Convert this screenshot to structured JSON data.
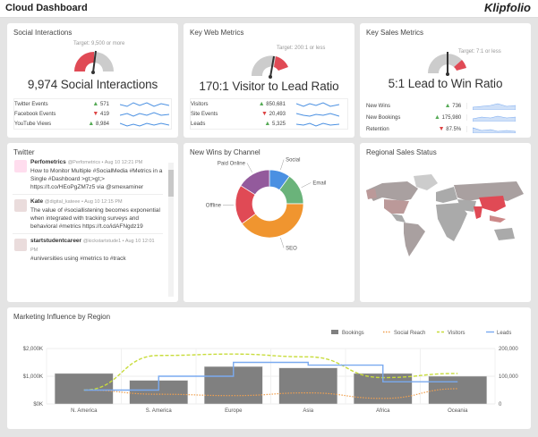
{
  "header": {
    "title": "Cloud Dashboard",
    "logo": "Klipfolio"
  },
  "social": {
    "title": "Social Interactions",
    "target": "Target: 9,500 or more",
    "headline": "9,974 Social Interactions",
    "gauge_value": 9974,
    "rows": [
      {
        "label": "Twitter Events",
        "trend": "up",
        "value": "571"
      },
      {
        "label": "Facebook Events",
        "trend": "down",
        "value": "419"
      },
      {
        "label": "YouTube Views",
        "trend": "up",
        "value": "8,984"
      }
    ]
  },
  "web": {
    "title": "Key Web Metrics",
    "target": "Target: 200:1 or less",
    "headline": "170:1 Visitor to Lead Ratio",
    "rows": [
      {
        "label": "Visitors",
        "trend": "up",
        "value": "850,681"
      },
      {
        "label": "Site Events",
        "trend": "down",
        "value": "20,493"
      },
      {
        "label": "Leads",
        "trend": "up",
        "value": "5,325"
      }
    ]
  },
  "sales": {
    "title": "Key Sales Metrics",
    "target": "Target: 7:1 or less",
    "headline": "5:1 Lead to Win Ratio",
    "rows": [
      {
        "label": "New Wins",
        "trend": "up",
        "value": "736"
      },
      {
        "label": "New Bookings",
        "trend": "up",
        "value": "175,980"
      },
      {
        "label": "Retention",
        "trend": "down",
        "value": "87.5%"
      }
    ]
  },
  "twitter": {
    "title": "Twitter",
    "tweets": [
      {
        "name": "Perfometrics",
        "meta": "@Perfometrics • Aug 10 12:21 PM",
        "text": "How to Monitor Multiple #SocialMedia #Metrics in a Single #Dashboard >gt;>gt;> https://t.co/HEoPgZM7z5 via @smexaminer"
      },
      {
        "name": "Kate",
        "meta": "@digital_kateee • Aug 10 12:15 PM",
        "text": "The value of #sociallistening becomes exponential when integrated with tracking surveys and behavioral #metrics https://t.co/idAFNgdz19"
      },
      {
        "name": "startstudentcareer",
        "meta": "@kickstartstude1 • Aug 10 12:01 PM",
        "text": "#universities using #metrics to #track"
      }
    ]
  },
  "wins": {
    "title": "New Wins by Channel"
  },
  "regional": {
    "title": "Regional Sales Status"
  },
  "marketing": {
    "title": "Marketing Influence by Region"
  },
  "chart_data": [
    {
      "type": "pie",
      "title": "New Wins by Channel",
      "categories": [
        "Social",
        "Email",
        "SEO",
        "Offline",
        "Paid Online"
      ],
      "values": [
        10,
        15,
        40,
        19,
        16
      ],
      "colors": [
        "#4a90e2",
        "#6ab37a",
        "#f0952f",
        "#e04a55",
        "#935a9c"
      ]
    },
    {
      "type": "bar",
      "title": "Marketing Influence by Region",
      "categories": [
        "N. America",
        "S. America",
        "Europe",
        "Asia",
        "Africa",
        "Oceania"
      ],
      "left_axis": {
        "ticks": [
          "$0K",
          "$1,000K",
          "$2,000K"
        ],
        "range": [
          0,
          2000
        ]
      },
      "right_axis": {
        "ticks": [
          "0",
          "100,000",
          "200,000"
        ],
        "range": [
          0,
          200000
        ]
      },
      "series": [
        {
          "name": "Bookings",
          "type": "bar",
          "axis": "left",
          "color": "#808080",
          "values": [
            1100,
            850,
            1350,
            1300,
            1100,
            1000
          ]
        },
        {
          "name": "Social Reach",
          "type": "line-dotted",
          "axis": "right",
          "color": "#f0a050",
          "values": [
            50000,
            35000,
            30000,
            40000,
            20000,
            55000
          ]
        },
        {
          "name": "Visitors",
          "type": "line-dashed",
          "axis": "right",
          "color": "#c8dc3c",
          "values": [
            50000,
            175000,
            180000,
            170000,
            95000,
            110000
          ]
        },
        {
          "name": "Leads",
          "type": "step",
          "axis": "right",
          "color": "#7aaaf0",
          "values": [
            50000,
            100000,
            150000,
            140000,
            80000,
            80000
          ]
        }
      ],
      "legend": "top-right",
      "grid": true
    }
  ]
}
